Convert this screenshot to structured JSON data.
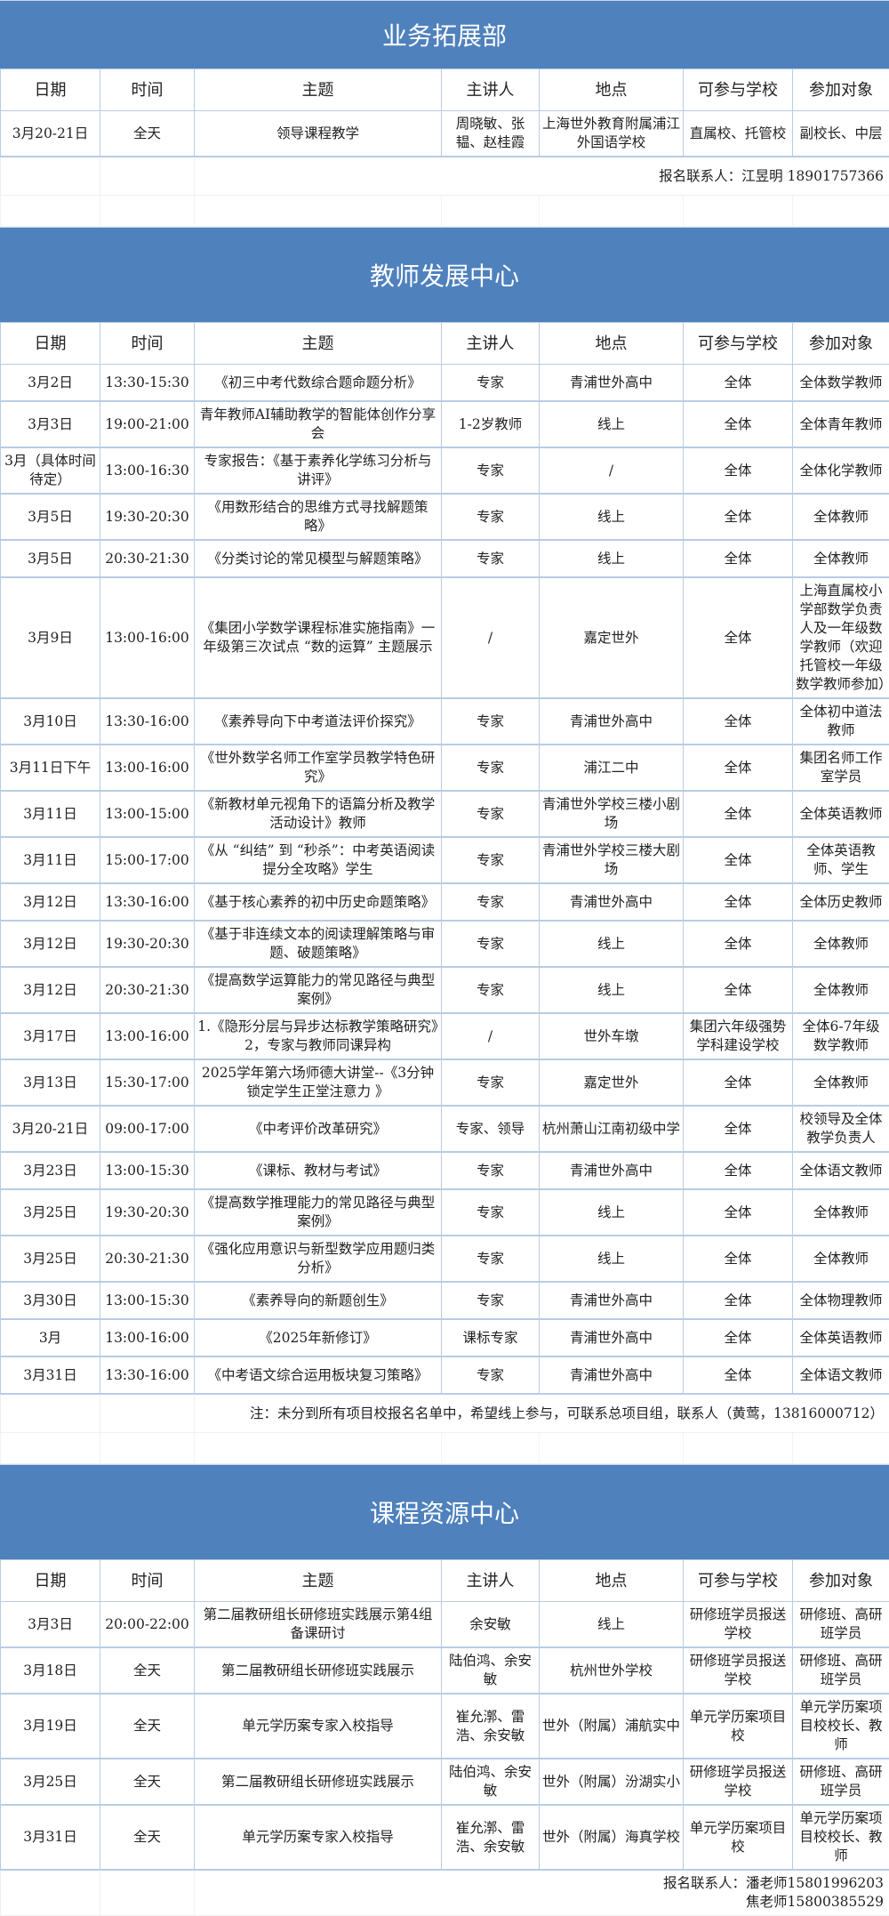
{
  "columns": [
    "日期",
    "时间",
    "主题",
    "主讲人",
    "地点",
    "可参与学校",
    "参加对象"
  ],
  "sections": [
    {
      "title": "业务拓展部",
      "rows": [
        [
          "3月20-21日",
          "全天",
          "领导课程教学",
          "周晓敏、张韫、赵桂霞",
          "上海世外教育附属浦江外国语学校",
          "直属校、托管校",
          "副校长、中层"
        ]
      ],
      "notes": [
        "报名联系人：江昱明  18901757366"
      ]
    },
    {
      "title": "教师发展中心",
      "rows": [
        [
          "3月2日",
          "13:30-15:30",
          "《初三中考代数综合题命题分析》",
          "专家",
          "青浦世外高中",
          "全体",
          "全体数学教师"
        ],
        [
          "3月3日",
          "19:00-21:00",
          "青年教师AI辅助教学的智能体创作分享会",
          "1-2岁教师",
          "线上",
          "全体",
          "全体青年教师"
        ],
        [
          "3月（具体时间待定）",
          "13:00-16:30",
          "专家报告：《基于素养化学练习分析与讲评》",
          "专家",
          "/",
          "全体",
          "全体化学教师"
        ],
        [
          "3月5日",
          "19:30-20:30",
          "《用数形结合的思维方式寻找解题策略》",
          "专家",
          "线上",
          "全体",
          "全体教师"
        ],
        [
          "3月5日",
          "20:30-21:30",
          "《分类讨论的常见模型与解题策略》",
          "专家",
          "线上",
          "全体",
          "全体教师"
        ],
        [
          "3月9日",
          "13:00-16:00",
          "《集团小学数学课程标准实施指南》一年级第三次试点 “数的运算” 主题展示",
          "/",
          "嘉定世外",
          "全体",
          "上海直属校小学部数学负责人及一年级数学教师（欢迎托管校一年级数学教师参加）"
        ],
        [
          "3月10日",
          "13:30-16:00",
          "《素养导向下中考道法评价探究》",
          "专家",
          "青浦世外高中",
          "全体",
          "全体初中道法教师"
        ],
        [
          "3月11日下午",
          "13:00-16:00",
          "《世外数学名师工作室学员教学特色研究》",
          "专家",
          "浦江二中",
          "全体",
          "集团名师工作室学员"
        ],
        [
          "3月11日",
          "13:00-15:00",
          "《新教材单元视角下的语篇分析及教学活动设计》教师",
          "专家",
          "青浦世外学校三楼小剧场",
          "全体",
          "全体英语教师"
        ],
        [
          "3月11日",
          "15:00-17:00",
          "《从 “纠结” 到 “秒杀”：中考英语阅读提分全攻略》学生",
          "专家",
          "青浦世外学校三楼大剧场",
          "全体",
          "全体英语教师、学生"
        ],
        [
          "3月12日",
          "13:30-16:00",
          "《基于核心素养的初中历史命题策略》",
          "专家",
          "青浦世外高中",
          "全体",
          "全体历史教师"
        ],
        [
          "3月12日",
          "19:30-20:30",
          "《基于非连续文本的阅读理解策略与审题、破题策略》",
          "专家",
          "线上",
          "全体",
          "全体教师"
        ],
        [
          "3月12日",
          "20:30-21:30",
          "《提高数学运算能力的常见路径与典型案例》",
          "专家",
          "线上",
          "全体",
          "全体教师"
        ],
        [
          "3月17日",
          "13:00-16:00",
          "1.《隐形分层与异步达标教学策略研究》2，专家与教师同课异构",
          "/",
          "世外车墩",
          "集团六年级强势学科建设学校",
          "全体6-7年级数学教师"
        ],
        [
          "3月13日",
          "15:30-17:00",
          "2025学年第六场师德大讲堂--《3分钟锁定学生正堂注意力 》",
          "专家",
          "嘉定世外",
          "全体",
          "全体教师"
        ],
        [
          "3月20-21日",
          "09:00-17:00",
          "《中考评价改革研究》",
          "专家、领导",
          "杭州萧山江南初级中学",
          "全体",
          "校领导及全体教学负责人"
        ],
        [
          "3月23日",
          "13:00-15:30",
          "《课标、教材与考试》",
          "专家",
          "青浦世外高中",
          "全体",
          "全体语文教师"
        ],
        [
          "3月25日",
          "19:30-20:30",
          "《提高数学推理能力的常见路径与典型案例》",
          "专家",
          "线上",
          "全体",
          "全体教师"
        ],
        [
          "3月25日",
          "20:30-21:30",
          "《强化应用意识与新型数学应用题归类分析》",
          "专家",
          "线上",
          "全体",
          "全体教师"
        ],
        [
          "3月30日",
          "13:00-15:30",
          "《素养导向的新题创生》",
          "专家",
          "青浦世外高中",
          "全体",
          "全体物理教师"
        ],
        [
          "3月",
          "13:00-16:00",
          "《2025年新修订》",
          "课标专家",
          "青浦世外高中",
          "全体",
          "全体英语教师"
        ],
        [
          "3月31日",
          "13:30-16:00",
          "《中考语文综合运用板块复习策略》",
          "专家",
          "青浦世外高中",
          "全体",
          "全体语文教师"
        ]
      ],
      "notes": [
        "注：未分到所有项目校报名名单中，希望线上参与，可联系总项目组，联系人（黄莺，13816000712）"
      ]
    },
    {
      "title": "课程资源中心",
      "rows": [
        [
          "3月3日",
          "20:00-22:00",
          "第二届教研组长研修班实践展示第4组备课研讨",
          "余安敏",
          "线上",
          "研修班学员报送学校",
          "研修班、高研班学员"
        ],
        [
          "3月18日",
          "全天",
          "第二届教研组长研修班实践展示",
          "陆伯鸿、余安敏",
          "杭州世外学校",
          "研修班学员报送学校",
          "研修班、高研班学员"
        ],
        [
          "3月19日",
          "全天",
          "单元学历案专家入校指导",
          "崔允漷、雷浩、余安敏",
          "世外（附属）浦航实中",
          "单元学历案项目校",
          "单元学历案项目校校长、教师"
        ],
        [
          "3月25日",
          "全天",
          "第二届教研组长研修班实践展示",
          "陆伯鸿、余安敏",
          "世外（附属）汾湖实小",
          "研修班学员报送学校",
          "研修班、高研班学员"
        ],
        [
          "3月31日",
          "全天",
          "单元学历案专家入校指导",
          "崔允漷、雷浩、余安敏",
          "世外（附属）海真学校",
          "单元学历案项目校",
          "单元学历案项目校校长、教师"
        ]
      ],
      "notes": [
        "报名联系人：潘老师15801996203",
        "焦老师15800385529"
      ]
    }
  ],
  "colors": {
    "band": "#4f81bd",
    "grid": "#b8cce4"
  }
}
